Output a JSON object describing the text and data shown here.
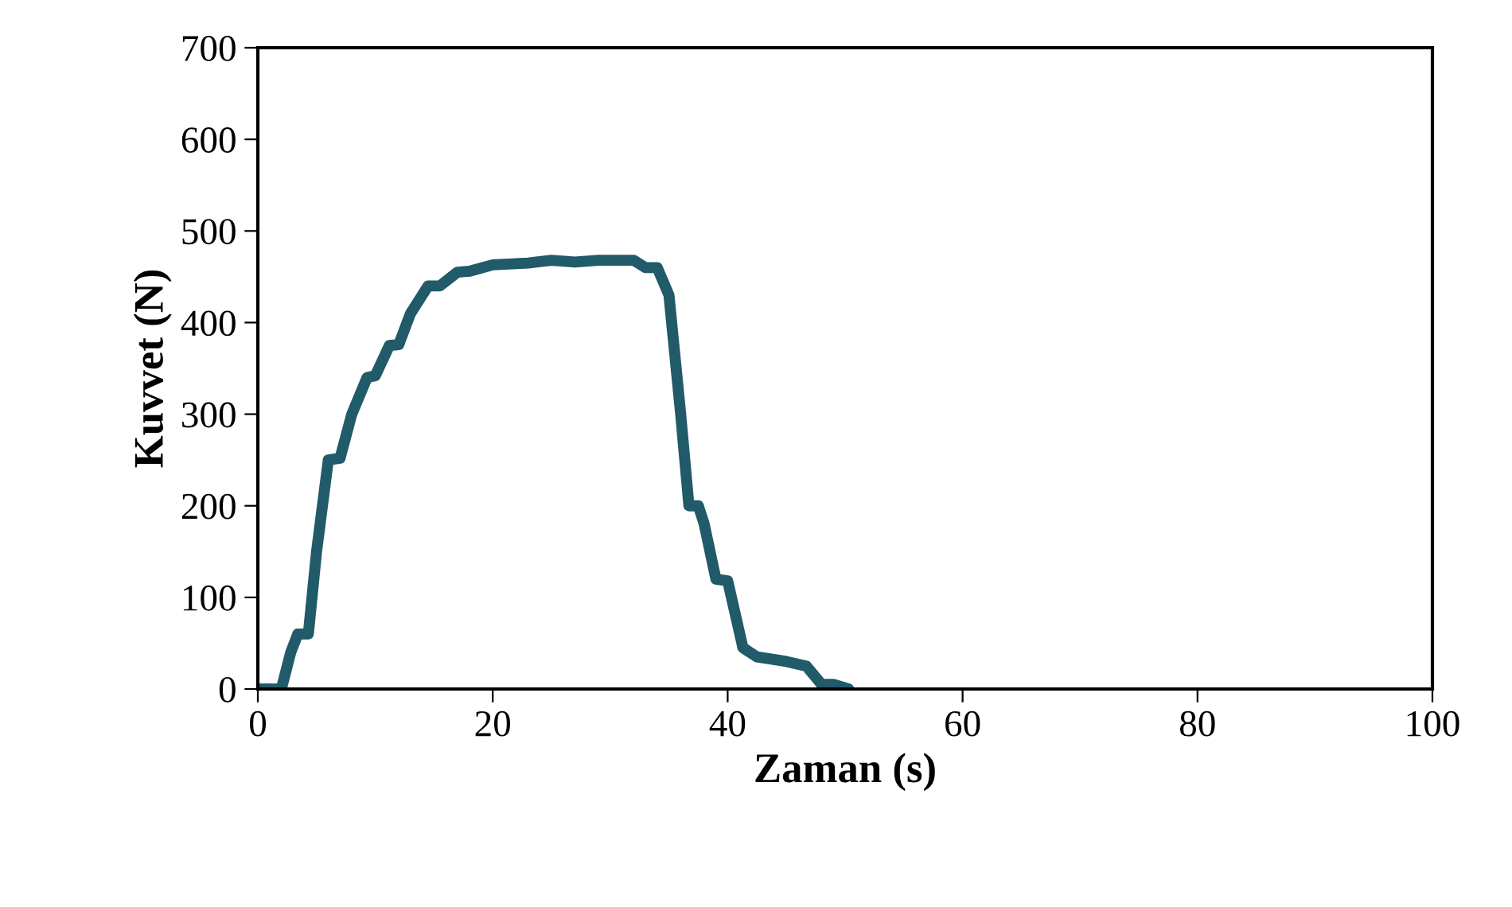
{
  "chart_data": {
    "type": "line",
    "xlabel": "Zaman (s)",
    "ylabel": "Kuvvet (N)",
    "xlim": [
      0,
      100
    ],
    "xticks": [
      0,
      20,
      40,
      60,
      80,
      100
    ],
    "ylim": [
      0,
      700
    ],
    "yticks": [
      0,
      100,
      200,
      300,
      400,
      500,
      600,
      700
    ],
    "grid": false,
    "legend": false,
    "marker": "none",
    "line_style": "solid",
    "series": [
      {
        "color": "#215a69",
        "x": [
          0,
          2,
          2.8,
          3.4,
          4.3,
          5,
          6,
          7,
          8,
          9.3,
          10,
          11.2,
          12,
          13,
          14.5,
          15.5,
          17,
          18,
          20,
          23,
          25,
          27,
          29,
          32,
          33,
          34,
          35,
          36,
          36.7,
          37.5,
          38,
          39,
          40,
          41.3,
          42.5,
          45,
          46.7,
          48,
          49,
          50.3
        ],
        "values": [
          0,
          0,
          40,
          60,
          60,
          150,
          250,
          252,
          300,
          340,
          342,
          375,
          376,
          410,
          440,
          440,
          455,
          456,
          463,
          465,
          468,
          466,
          468,
          468,
          460,
          460,
          430,
          300,
          200,
          200,
          180,
          120,
          118,
          45,
          35,
          30,
          25,
          5,
          5,
          0
        ]
      }
    ]
  }
}
